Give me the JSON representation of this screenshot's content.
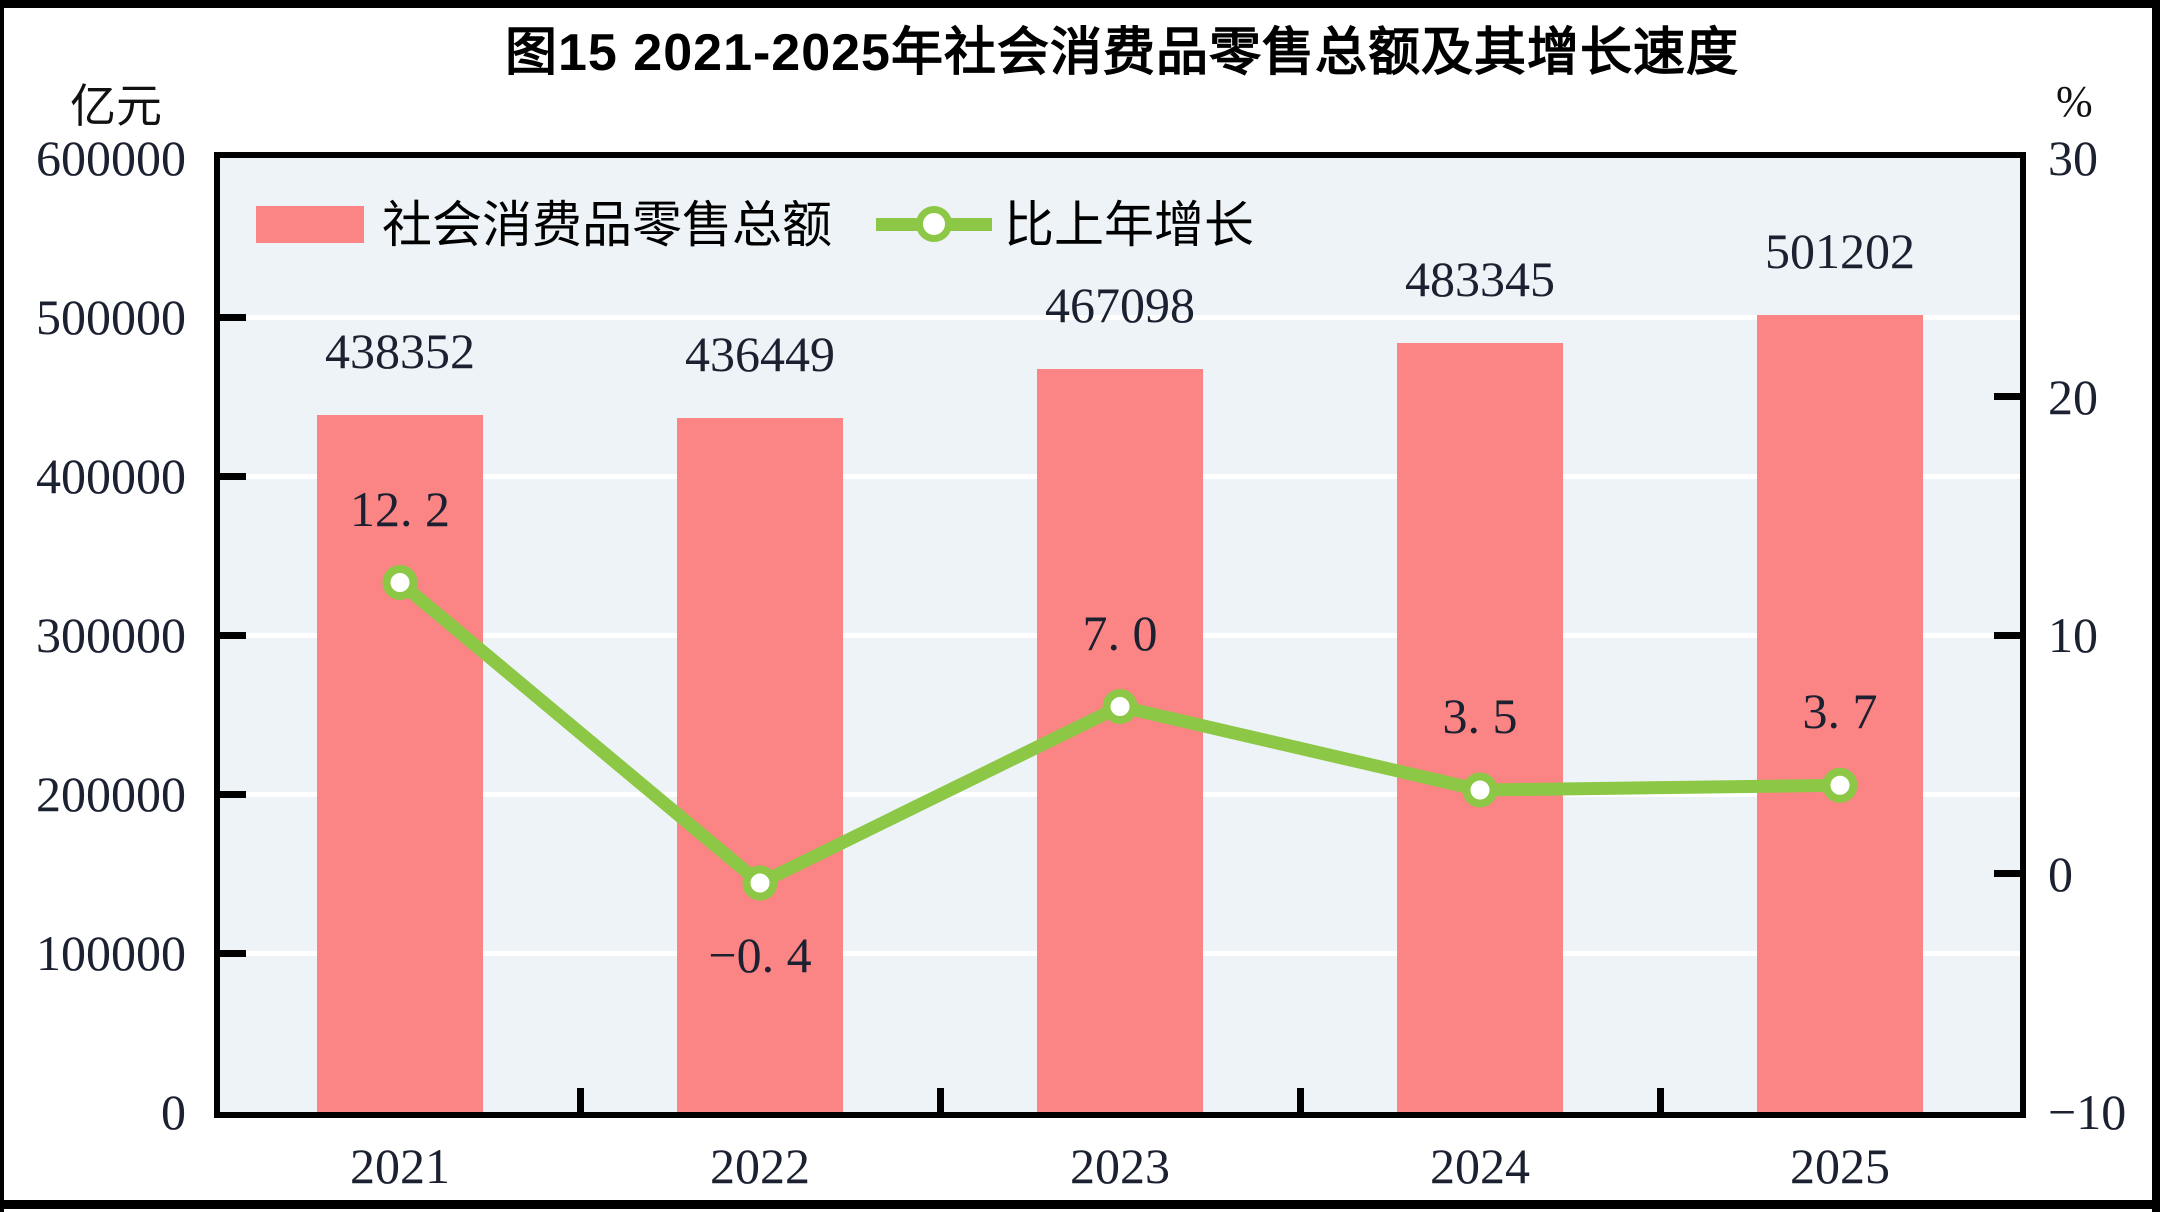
{
  "title": "图15  2021-2025年社会消费品零售总额及其增长速度",
  "units": {
    "left": "亿元",
    "right": "%"
  },
  "legend": {
    "bar": "社会消费品零售总额",
    "line": "比上年增长"
  },
  "colors": {
    "bar": "#FB8484",
    "line": "#8CC845",
    "marker_fill": "#FFFFFF",
    "plot_bg": "#EDF3F6",
    "grid": "#FFFFFF",
    "frame": "#000000",
    "number_ink": "#1B2130",
    "text_ink": "#000000"
  },
  "chart_data": {
    "type": "bar+line",
    "title": "图15 2021-2025年社会消费品零售总额及其增长速度",
    "categories": [
      "2021",
      "2022",
      "2023",
      "2024",
      "2025"
    ],
    "series": [
      {
        "name": "社会消费品零售总额",
        "type": "bar",
        "axis": "left",
        "unit": "亿元",
        "values": [
          438352,
          436449,
          467098,
          483345,
          501202
        ],
        "labels": [
          "438352",
          "436449",
          "467098",
          "483345",
          "501202"
        ]
      },
      {
        "name": "比上年增长",
        "type": "line",
        "axis": "right",
        "unit": "%",
        "values": [
          12.2,
          -0.4,
          7.0,
          3.5,
          3.7
        ],
        "labels": [
          "12. 2",
          "−0. 4",
          "7. 0",
          "3. 5",
          "3. 7"
        ]
      }
    ],
    "left_axis": {
      "unit": "亿元",
      "min": 0,
      "max": 600000,
      "tick_step": 100000,
      "tick_labels": [
        "600000",
        "500000",
        "400000",
        "300000",
        "200000",
        "100000",
        "0"
      ]
    },
    "right_axis": {
      "unit": "%",
      "min": -10,
      "max": 30,
      "tick_step": 10,
      "tick_labels": [
        "30",
        "20",
        "10",
        "0",
        "−10"
      ]
    },
    "grid": "horizontal white lines at left-axis ticks",
    "legend_position": "top-left-inside"
  }
}
